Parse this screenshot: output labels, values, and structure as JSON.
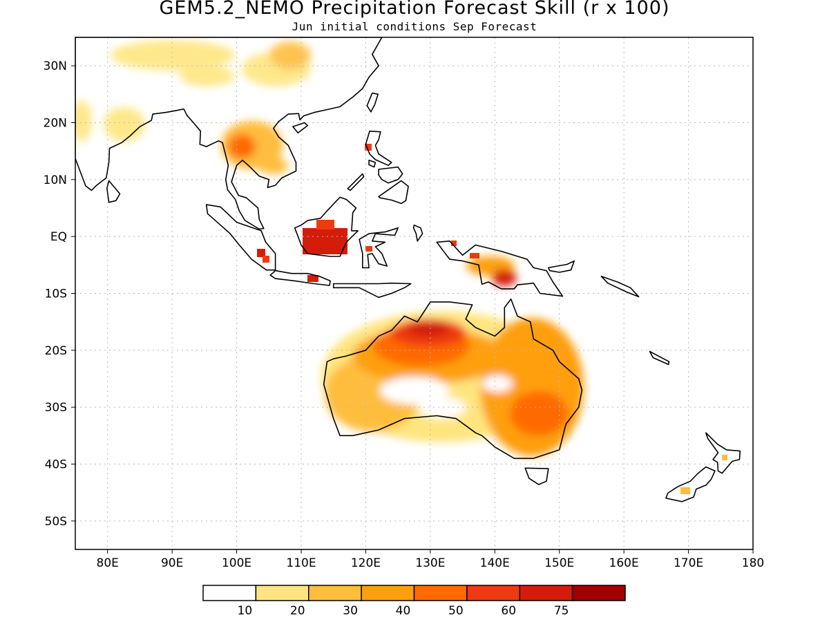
{
  "title": "GEM5.2_NEMO Precipitation Forecast Skill (r x 100)",
  "subtitle": "Jun initial conditions  Sep Forecast",
  "map": {
    "lon_range": [
      75,
      180
    ],
    "lat_range": [
      -55,
      35
    ],
    "lon_ticks": [
      {
        "value": 80,
        "label": "80E"
      },
      {
        "value": 90,
        "label": "90E"
      },
      {
        "value": 100,
        "label": "100E"
      },
      {
        "value": 110,
        "label": "110E"
      },
      {
        "value": 120,
        "label": "120E"
      },
      {
        "value": 130,
        "label": "130E"
      },
      {
        "value": 140,
        "label": "140E"
      },
      {
        "value": 150,
        "label": "150E"
      },
      {
        "value": 160,
        "label": "160E"
      },
      {
        "value": 170,
        "label": "170E"
      },
      {
        "value": 180,
        "label": "180"
      }
    ],
    "lat_ticks": [
      {
        "value": 30,
        "label": "30N"
      },
      {
        "value": 20,
        "label": "20N"
      },
      {
        "value": 10,
        "label": "10N"
      },
      {
        "value": 0,
        "label": "EQ"
      },
      {
        "value": -10,
        "label": "10S"
      },
      {
        "value": -20,
        "label": "20S"
      },
      {
        "value": -30,
        "label": "30S"
      },
      {
        "value": -40,
        "label": "40S"
      },
      {
        "value": -50,
        "label": "50S"
      }
    ],
    "grid": true
  },
  "legend": {
    "colors": [
      "#ffffff",
      "#ffe57f",
      "#ffbd3d",
      "#ff9f0f",
      "#ff6b00",
      "#ee3a10",
      "#d41c0a",
      "#a00000"
    ],
    "labels": [
      "10",
      "20",
      "30",
      "40",
      "50",
      "60",
      "75"
    ]
  },
  "landmasses": [
    {
      "name": "australia",
      "points": [
        [
          114,
          -22
        ],
        [
          113.5,
          -26
        ],
        [
          115,
          -32
        ],
        [
          116,
          -35
        ],
        [
          118,
          -35
        ],
        [
          122,
          -34
        ],
        [
          126,
          -32
        ],
        [
          131,
          -31.5
        ],
        [
          134,
          -32
        ],
        [
          137,
          -34.5
        ],
        [
          138,
          -35
        ],
        [
          140,
          -37
        ],
        [
          143,
          -39
        ],
        [
          146,
          -39
        ],
        [
          150,
          -37.5
        ],
        [
          151,
          -33
        ],
        [
          153,
          -30
        ],
        [
          153.5,
          -27
        ],
        [
          153,
          -25
        ],
        [
          150,
          -22
        ],
        [
          149,
          -20
        ],
        [
          146,
          -18
        ],
        [
          145.5,
          -15
        ],
        [
          143.5,
          -14
        ],
        [
          142.5,
          -11
        ],
        [
          141.5,
          -12.5
        ],
        [
          141.5,
          -16
        ],
        [
          140,
          -17.5
        ],
        [
          137,
          -16
        ],
        [
          135.5,
          -14.5
        ],
        [
          136.5,
          -12
        ],
        [
          133,
          -11.5
        ],
        [
          130,
          -11.5
        ],
        [
          128,
          -15
        ],
        [
          126,
          -14
        ],
        [
          124,
          -16.5
        ],
        [
          122,
          -17.5
        ],
        [
          120,
          -20
        ],
        [
          117,
          -21
        ],
        [
          115,
          -21.5
        ]
      ]
    },
    {
      "name": "tasmania",
      "points": [
        [
          144.7,
          -40.7
        ],
        [
          148.3,
          -40.8
        ],
        [
          148,
          -43
        ],
        [
          146.8,
          -43.6
        ],
        [
          145.3,
          -42.5
        ]
      ]
    },
    {
      "name": "new-guinea",
      "points": [
        [
          131,
          -1
        ],
        [
          133,
          -0.8
        ],
        [
          135,
          -3.3
        ],
        [
          137,
          -1.5
        ],
        [
          141,
          -2.6
        ],
        [
          145,
          -4
        ],
        [
          146,
          -5.5
        ],
        [
          148,
          -6
        ],
        [
          149,
          -8
        ],
        [
          150.5,
          -10.5
        ],
        [
          147,
          -10
        ],
        [
          146,
          -8.2
        ],
        [
          143.5,
          -8.5
        ],
        [
          143,
          -9.2
        ],
        [
          141,
          -9.2
        ],
        [
          139,
          -8
        ],
        [
          138,
          -8.4
        ],
        [
          137.5,
          -5
        ],
        [
          135,
          -4.3
        ],
        [
          133,
          -4
        ],
        [
          132,
          -2.5
        ]
      ]
    },
    {
      "name": "borneo",
      "points": [
        [
          109,
          1.5
        ],
        [
          110,
          2
        ],
        [
          111,
          2.8
        ],
        [
          113,
          3.2
        ],
        [
          114,
          4.5
        ],
        [
          116,
          6.9
        ],
        [
          117,
          6.5
        ],
        [
          118.5,
          5
        ],
        [
          118,
          4.2
        ],
        [
          117.8,
          1
        ],
        [
          118.8,
          1
        ],
        [
          117,
          -1
        ],
        [
          116,
          -3.5
        ],
        [
          114.5,
          -3.5
        ],
        [
          113,
          -3.3
        ],
        [
          111,
          -3
        ],
        [
          110,
          -1.5
        ]
      ]
    },
    {
      "name": "sumatra",
      "points": [
        [
          95.3,
          5.6
        ],
        [
          97.5,
          5.2
        ],
        [
          100,
          2.5
        ],
        [
          103.8,
          1
        ],
        [
          104.5,
          -1
        ],
        [
          106,
          -3
        ],
        [
          106,
          -5.9
        ],
        [
          104.6,
          -5.9
        ],
        [
          102.3,
          -4
        ],
        [
          100.4,
          -1.5
        ],
        [
          99,
          0.5
        ],
        [
          97.5,
          2
        ],
        [
          95.5,
          4
        ]
      ]
    },
    {
      "name": "java",
      "points": [
        [
          105.2,
          -6.8
        ],
        [
          106,
          -6
        ],
        [
          108.5,
          -6.5
        ],
        [
          111,
          -6.5
        ],
        [
          112.8,
          -7
        ],
        [
          114.5,
          -7.8
        ],
        [
          114.4,
          -8.6
        ],
        [
          112,
          -8.3
        ],
        [
          109,
          -7.8
        ],
        [
          106,
          -7.4
        ]
      ]
    },
    {
      "name": "lesser-sunda",
      "points": [
        [
          115,
          -8.3
        ],
        [
          119,
          -8.3
        ],
        [
          122,
          -8.3
        ],
        [
          124,
          -8.2
        ],
        [
          127,
          -8.3
        ],
        [
          126,
          -9
        ],
        [
          124,
          -10
        ],
        [
          122,
          -10.7
        ],
        [
          119,
          -9
        ],
        [
          115,
          -9
        ]
      ]
    },
    {
      "name": "sulawesi",
      "points": [
        [
          119.5,
          -3
        ],
        [
          119,
          -0.5
        ],
        [
          120.5,
          0.5
        ],
        [
          123,
          0.8
        ],
        [
          125,
          1.5
        ],
        [
          124.5,
          0.2
        ],
        [
          121.5,
          0.5
        ],
        [
          121,
          -0.8
        ],
        [
          123,
          -1
        ],
        [
          121.5,
          -1.8
        ],
        [
          122.5,
          -3
        ],
        [
          123.3,
          -5.2
        ],
        [
          122,
          -4.8
        ],
        [
          121,
          -3
        ],
        [
          120.3,
          -3.2
        ],
        [
          120.5,
          -5.5
        ],
        [
          119.5,
          -5.5
        ]
      ]
    },
    {
      "name": "halmahera",
      "points": [
        [
          127.5,
          2
        ],
        [
          128.5,
          1.5
        ],
        [
          128.8,
          0.5
        ],
        [
          128,
          -0.8
        ],
        [
          127.8,
          0.5
        ],
        [
          127.4,
          1.5
        ]
      ]
    },
    {
      "name": "luzon",
      "points": [
        [
          120.6,
          18.5
        ],
        [
          122.3,
          18.4
        ],
        [
          122,
          17
        ],
        [
          121.5,
          16
        ],
        [
          122,
          14.5
        ],
        [
          124,
          13
        ],
        [
          123.5,
          12.5
        ],
        [
          121.5,
          13.5
        ],
        [
          120.6,
          14.5
        ],
        [
          120,
          16.2
        ]
      ]
    },
    {
      "name": "mindoro-panay",
      "points": [
        [
          120.5,
          13.4
        ],
        [
          121.5,
          13
        ],
        [
          121.3,
          12.2
        ],
        [
          120.5,
          12.6
        ]
      ]
    },
    {
      "name": "visayas",
      "points": [
        [
          122,
          11.8
        ],
        [
          125,
          12.2
        ],
        [
          125.7,
          11
        ],
        [
          125,
          10
        ],
        [
          123.5,
          9.4
        ],
        [
          122.5,
          10
        ],
        [
          122,
          10.8
        ]
      ]
    },
    {
      "name": "palawan",
      "points": [
        [
          117.2,
          8.4
        ],
        [
          119.5,
          11
        ],
        [
          119.7,
          10.5
        ],
        [
          117.6,
          8.1
        ]
      ]
    },
    {
      "name": "mindanao",
      "points": [
        [
          122,
          7
        ],
        [
          123.5,
          8.2
        ],
        [
          125.5,
          9.8
        ],
        [
          126.6,
          8.8
        ],
        [
          126.2,
          6.3
        ],
        [
          125.5,
          5.8
        ],
        [
          124,
          6.4
        ],
        [
          122.2,
          6.8
        ]
      ]
    },
    {
      "name": "taiwan",
      "points": [
        [
          120.2,
          23
        ],
        [
          121,
          25.2
        ],
        [
          121.9,
          25
        ],
        [
          121.4,
          23.2
        ],
        [
          120.8,
          21.9
        ]
      ]
    },
    {
      "name": "hainan",
      "points": [
        [
          108.7,
          19.3
        ],
        [
          110.5,
          20
        ],
        [
          111,
          19.5
        ],
        [
          109.5,
          18.2
        ]
      ]
    },
    {
      "name": "sri-lanka",
      "points": [
        [
          79.9,
          8.5
        ],
        [
          80.2,
          9.8
        ],
        [
          81.9,
          7.5
        ],
        [
          81.3,
          6.3
        ],
        [
          80.2,
          6
        ]
      ]
    },
    {
      "name": "new-zealand-north",
      "points": [
        [
          172.7,
          -34.5
        ],
        [
          174.5,
          -36.5
        ],
        [
          175.9,
          -37.5
        ],
        [
          178,
          -37.7
        ],
        [
          177.9,
          -39.2
        ],
        [
          176.8,
          -39.5
        ],
        [
          175.2,
          -41.6
        ],
        [
          174.6,
          -41.2
        ],
        [
          174.5,
          -39.7
        ],
        [
          173.8,
          -39.2
        ],
        [
          174.6,
          -38
        ],
        [
          173,
          -35.5
        ]
      ]
    },
    {
      "name": "new-zealand-south",
      "points": [
        [
          172.7,
          -40.5
        ],
        [
          174.1,
          -41.2
        ],
        [
          173.5,
          -42.7
        ],
        [
          172.7,
          -43.7
        ],
        [
          171.2,
          -44.4
        ],
        [
          170.8,
          -45.8
        ],
        [
          169,
          -46.6
        ],
        [
          166.5,
          -46
        ],
        [
          166.8,
          -45.1
        ],
        [
          168.3,
          -44
        ],
        [
          170.3,
          -43
        ],
        [
          171.4,
          -41.7
        ]
      ]
    },
    {
      "name": "solomons",
      "points": [
        [
          156.5,
          -7
        ],
        [
          159,
          -8
        ],
        [
          161,
          -9
        ],
        [
          162.3,
          -10.6
        ],
        [
          160.5,
          -9.8
        ],
        [
          157.5,
          -8.2
        ]
      ]
    },
    {
      "name": "new-britain",
      "points": [
        [
          148.3,
          -5.5
        ],
        [
          151.2,
          -4.9
        ],
        [
          152.3,
          -4.3
        ],
        [
          151.8,
          -5.9
        ],
        [
          150,
          -6.3
        ],
        [
          148.5,
          -6
        ]
      ]
    },
    {
      "name": "new-caledonia",
      "points": [
        [
          164,
          -20.2
        ],
        [
          167,
          -22
        ],
        [
          166.9,
          -22.5
        ],
        [
          164.5,
          -21.3
        ]
      ]
    },
    {
      "name": "mainland-asia",
      "points": [
        [
          75,
          35
        ],
        [
          122.5,
          35
        ],
        [
          121,
          32
        ],
        [
          122,
          30
        ],
        [
          120.5,
          28
        ],
        [
          119.5,
          26
        ],
        [
          118,
          24.5
        ],
        [
          116,
          22.8
        ],
        [
          114,
          22.3
        ],
        [
          112,
          21.8
        ],
        [
          110.4,
          21.2
        ],
        [
          109.8,
          20.5
        ],
        [
          109.6,
          21.6
        ],
        [
          108,
          21.5
        ],
        [
          106.5,
          20.2
        ],
        [
          105.7,
          19
        ],
        [
          106.5,
          17.5
        ],
        [
          108,
          16
        ],
        [
          109.2,
          13
        ],
        [
          109.2,
          11.5
        ],
        [
          107,
          10.3
        ],
        [
          106,
          9
        ],
        [
          104.8,
          8.6
        ],
        [
          105,
          10
        ],
        [
          103.5,
          10.6
        ],
        [
          102,
          12.3
        ],
        [
          100.9,
          13.4
        ],
        [
          100,
          12.5
        ],
        [
          99.2,
          9.6
        ],
        [
          100.3,
          7.2
        ],
        [
          101.5,
          6.8
        ],
        [
          103.3,
          5
        ],
        [
          103.5,
          3
        ],
        [
          104.2,
          1.4
        ],
        [
          103.5,
          1.3
        ],
        [
          101.3,
          2.8
        ],
        [
          100.4,
          4.5
        ],
        [
          99.8,
          6.5
        ],
        [
          98.6,
          8.2
        ],
        [
          98.3,
          10
        ],
        [
          98.7,
          12.5
        ],
        [
          97.8,
          16.5
        ],
        [
          97.2,
          16.8
        ],
        [
          95.3,
          15.8
        ],
        [
          94.3,
          16.2
        ],
        [
          94.4,
          18.5
        ],
        [
          93.3,
          20
        ],
        [
          92.3,
          21.3
        ],
        [
          91.8,
          22.4
        ],
        [
          90.5,
          22.1
        ],
        [
          89,
          21.8
        ],
        [
          87,
          21.5
        ],
        [
          86.8,
          20.4
        ],
        [
          85,
          19.3
        ],
        [
          83.4,
          17.6
        ],
        [
          82.2,
          16.5
        ],
        [
          80.3,
          15.5
        ],
        [
          80.2,
          13
        ],
        [
          79.8,
          10.3
        ],
        [
          78.2,
          8.9
        ],
        [
          77.5,
          8.1
        ],
        [
          76.6,
          8.9
        ],
        [
          75.8,
          11.3
        ],
        [
          75,
          13.7
        ]
      ]
    }
  ]
}
